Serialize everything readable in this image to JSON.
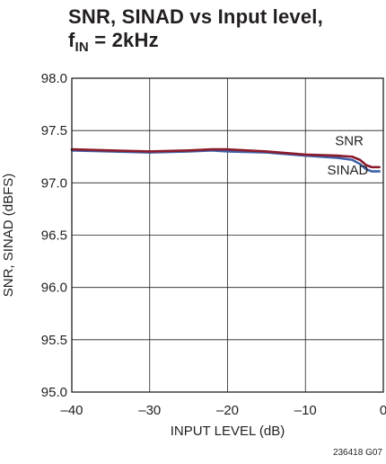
{
  "title": {
    "line1": "SNR, SINAD vs Input level,",
    "line2_f": "f",
    "line2_sub": "IN",
    "line2_rest": " = 2kHz"
  },
  "figure_code": "236418 G07",
  "chart_data": {
    "type": "line",
    "title": "SNR, SINAD vs Input level, fIN = 2kHz",
    "xlabel": "INPUT LEVEL (dB)",
    "ylabel": "SNR, SINAD (dBFS)",
    "xlim": [
      -40,
      0
    ],
    "ylim": [
      95.0,
      98.0
    ],
    "x_ticks": [
      -40,
      -30,
      -20,
      -10,
      0
    ],
    "x_tick_labels": [
      "–40",
      "–30",
      "–20",
      "–10",
      "0"
    ],
    "y_ticks": [
      95.0,
      95.5,
      96.0,
      96.5,
      97.0,
      97.5,
      98.0
    ],
    "y_tick_labels": [
      "95.0",
      "95.5",
      "96.0",
      "96.5",
      "97.0",
      "97.5",
      "98.0"
    ],
    "grid": true,
    "series": [
      {
        "name": "SNR",
        "color": "#8b1a2b",
        "x": [
          -40,
          -35,
          -30,
          -25,
          -22,
          -20,
          -15,
          -10,
          -6,
          -4,
          -3,
          -2.2,
          -1.5,
          -1,
          -0.5
        ],
        "y": [
          97.32,
          97.31,
          97.3,
          97.31,
          97.32,
          97.32,
          97.3,
          97.27,
          97.26,
          97.25,
          97.22,
          97.17,
          97.15,
          97.15,
          97.15
        ]
      },
      {
        "name": "SINAD",
        "color": "#3f62a8",
        "x": [
          -40,
          -35,
          -30,
          -25,
          -22,
          -20,
          -15,
          -10,
          -6,
          -4,
          -3,
          -2.2,
          -1.5,
          -1,
          -0.5
        ],
        "y": [
          97.31,
          97.3,
          97.29,
          97.3,
          97.31,
          97.3,
          97.29,
          97.26,
          97.24,
          97.22,
          97.18,
          97.13,
          97.11,
          97.11,
          97.11
        ]
      }
    ],
    "annotations": [
      {
        "text": "SNR",
        "x": -6.2,
        "y": 97.36
      },
      {
        "text": "SINAD",
        "x": -7.2,
        "y": 97.08
      }
    ]
  }
}
